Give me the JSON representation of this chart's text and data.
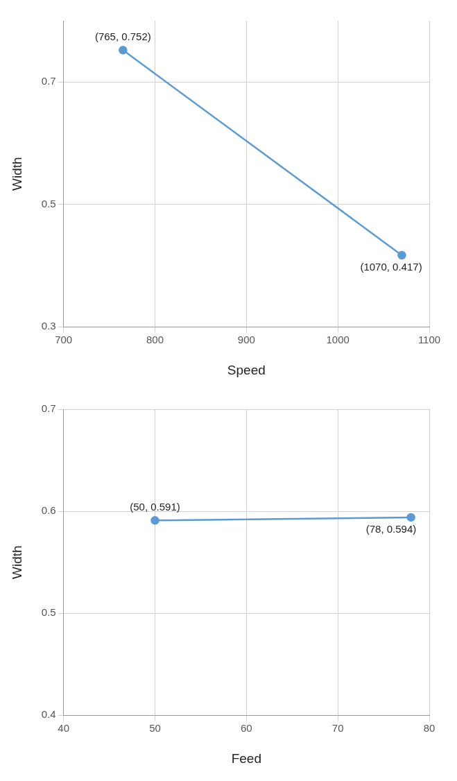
{
  "chart_data": [
    {
      "type": "line",
      "xlabel": "Speed",
      "ylabel": "Width",
      "x": [
        765,
        1070
      ],
      "series": [
        {
          "color": "#5b9bd5",
          "values": [
            0.752,
            0.417
          ]
        }
      ],
      "xlim": [
        700,
        1100
      ],
      "xticks": [
        700,
        800,
        900,
        1000,
        1100
      ],
      "ylim": [
        0.3,
        0.8
      ],
      "yticks": [
        0.3,
        0.5,
        0.7
      ],
      "grid": true,
      "legend": false,
      "marker": "circle",
      "line_style": "solid",
      "annotations": [
        {
          "text": "(765, 0.752)",
          "x": 765,
          "y": 0.752
        },
        {
          "text": "(1070, 0.417)",
          "x": 1070,
          "y": 0.417
        }
      ]
    },
    {
      "type": "line",
      "xlabel": "Feed",
      "ylabel": "Width",
      "x": [
        50,
        78
      ],
      "series": [
        {
          "color": "#5b9bd5",
          "values": [
            0.591,
            0.594
          ]
        }
      ],
      "xlim": [
        40,
        80
      ],
      "xticks": [
        40,
        50,
        60,
        70,
        80
      ],
      "ylim": [
        0.4,
        0.7
      ],
      "yticks": [
        0.4,
        0.5,
        0.6,
        0.7
      ],
      "grid": true,
      "legend": false,
      "marker": "circle",
      "line_style": "solid",
      "annotations": [
        {
          "text": "(50, 0.591)",
          "x": 50,
          "y": 0.591
        },
        {
          "text": "(78, 0.594)",
          "x": 78,
          "y": 0.594
        }
      ]
    }
  ]
}
